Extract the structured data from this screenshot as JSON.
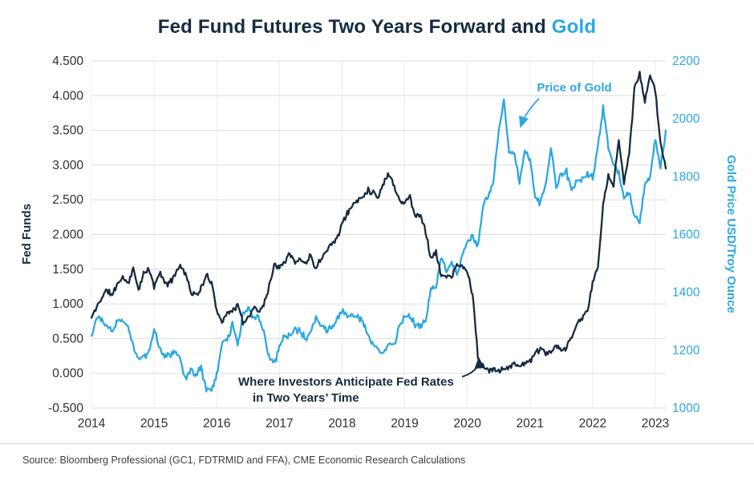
{
  "title": {
    "prefix": "Fed Fund Futures Two Years Forward and ",
    "highlight": "Gold"
  },
  "colors": {
    "navy": "#152B40",
    "blue": "#2BA8E1",
    "grid": "#DCDCDC",
    "grid_vertical": "#ECECEC",
    "tick_text": "#2F2F2F",
    "source_text": "#3C3C3C"
  },
  "axes": {
    "left": {
      "label": "Fed Funds",
      "ticks": [
        "4.500",
        "4.000",
        "3.500",
        "3.000",
        "2.500",
        "2.000",
        "1.500",
        "1.000",
        "0.500",
        "0.000",
        "-0.500"
      ]
    },
    "right": {
      "label": "Gold Price USD/Troy Ounce",
      "ticks": [
        "2200",
        "2000",
        "1800",
        "1600",
        "1400",
        "1200",
        "1000"
      ]
    },
    "x": {
      "ticks": [
        "2014",
        "2015",
        "2016",
        "2017",
        "2018",
        "2019",
        "2020",
        "2021",
        "2022",
        "2023"
      ]
    }
  },
  "annotations": {
    "gold": {
      "text": "Price of Gold"
    },
    "fed": {
      "line1": "Where Investors Anticipate Fed Rates",
      "line2": "in Two Years’ Time"
    }
  },
  "source": "Source: Bloomberg Professional (GC1, FDTRMID and FFA), CME Economic Research Calculations",
  "chart_data": {
    "type": "line",
    "title": "Fed Fund Futures Two Years Forward and Gold",
    "x_start_year": 2014,
    "x_axis": {
      "unit": "year-month",
      "start": "2014-01",
      "end": "2023-03",
      "tick_labels": [
        "2014",
        "2015",
        "2016",
        "2017",
        "2018",
        "2019",
        "2020",
        "2021",
        "2022",
        "2023"
      ]
    },
    "ylim_left": [
      -0.5,
      4.5
    ],
    "ylim_right": [
      1000,
      2200
    ],
    "ylabel_left": "Fed Funds",
    "ylabel_right": "Gold Price USD/Troy Ounce",
    "grid": true,
    "legend": "in-plot annotations",
    "series": [
      {
        "name": "Where Investors Anticipate Fed Rates in Two Years’ Time",
        "axis": "left",
        "color_key": "navy",
        "unit": "percent",
        "frequency": "monthly",
        "values": [
          0.8,
          0.95,
          1.1,
          1.2,
          1.12,
          1.3,
          1.38,
          1.3,
          1.5,
          1.22,
          1.42,
          1.5,
          1.25,
          1.45,
          1.32,
          1.28,
          1.45,
          1.55,
          1.45,
          1.18,
          1.12,
          1.22,
          1.4,
          1.32,
          0.92,
          0.72,
          0.9,
          0.88,
          1.0,
          0.72,
          0.8,
          0.95,
          0.88,
          1.0,
          1.25,
          1.55,
          1.55,
          1.62,
          1.75,
          1.58,
          1.65,
          1.58,
          1.7,
          1.52,
          1.65,
          1.8,
          1.85,
          1.95,
          2.15,
          2.3,
          2.42,
          2.5,
          2.55,
          2.65,
          2.6,
          2.55,
          2.75,
          2.88,
          2.7,
          2.5,
          2.45,
          2.55,
          2.25,
          2.3,
          2.05,
          1.65,
          1.75,
          1.38,
          1.42,
          1.38,
          1.55,
          1.55,
          1.45,
          1.15,
          0.25,
          0.08,
          0.05,
          0.05,
          0.05,
          0.08,
          0.1,
          0.12,
          0.12,
          0.15,
          0.18,
          0.28,
          0.35,
          0.3,
          0.3,
          0.38,
          0.32,
          0.38,
          0.5,
          0.72,
          0.8,
          0.9,
          1.3,
          1.55,
          2.4,
          2.85,
          2.7,
          3.4,
          2.75,
          3.15,
          4.1,
          4.3,
          3.9,
          4.3,
          4.1,
          3.3,
          2.95
        ]
      },
      {
        "name": "Price of Gold",
        "axis": "right",
        "color_key": "blue",
        "unit": "USD/troy ounce",
        "frequency": "monthly",
        "values": [
          1250,
          1320,
          1300,
          1290,
          1260,
          1310,
          1300,
          1280,
          1215,
          1170,
          1175,
          1190,
          1275,
          1210,
          1180,
          1185,
          1190,
          1170,
          1095,
          1130,
          1115,
          1140,
          1065,
          1060,
          1115,
          1230,
          1235,
          1290,
          1215,
          1320,
          1350,
          1310,
          1320,
          1270,
          1175,
          1150,
          1210,
          1250,
          1245,
          1270,
          1265,
          1240,
          1270,
          1315,
          1280,
          1270,
          1280,
          1300,
          1340,
          1320,
          1320,
          1315,
          1300,
          1250,
          1220,
          1200,
          1190,
          1230,
          1220,
          1280,
          1320,
          1315,
          1290,
          1280,
          1300,
          1410,
          1420,
          1525,
          1470,
          1505,
          1460,
          1520,
          1580,
          1590,
          1560,
          1700,
          1730,
          1780,
          1960,
          2060,
          1890,
          1880,
          1780,
          1890,
          1850,
          1730,
          1710,
          1770,
          1900,
          1770,
          1810,
          1815,
          1755,
          1785,
          1790,
          1805,
          1800,
          1900,
          2040,
          1900,
          1840,
          1810,
          1720,
          1745,
          1665,
          1640,
          1770,
          1800,
          1930,
          1830,
          1960
        ]
      }
    ]
  }
}
